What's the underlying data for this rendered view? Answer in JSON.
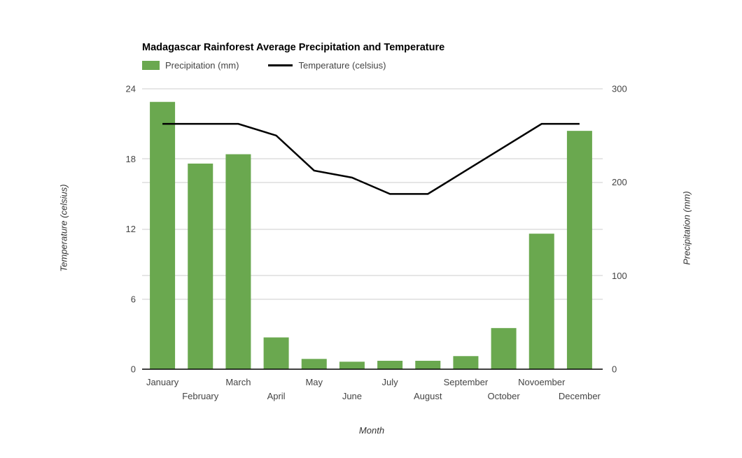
{
  "chart": {
    "title": "Madagascar Rainforest Average Precipitation and Temperature"
  },
  "chart_data": {
    "type": "combo",
    "title": "Madagascar Rainforest Average Precipitation and Temperature",
    "categories": [
      "January",
      "February",
      "March",
      "April",
      "May",
      "June",
      "July",
      "August",
      "September",
      "October",
      "Novoember",
      "December"
    ],
    "series": [
      {
        "name": "Precipitation (mm)",
        "type": "bar",
        "axis": "right",
        "color": "#6aa84f",
        "values": [
          286,
          220,
          230,
          34,
          11,
          8,
          9,
          9,
          14,
          44,
          145,
          255
        ]
      },
      {
        "name": "Temperature (celsius)",
        "type": "line",
        "axis": "left",
        "color": "#000000",
        "values": [
          21,
          21,
          21,
          20,
          17,
          16.4,
          15,
          15,
          17,
          19,
          21,
          21
        ]
      }
    ],
    "xlabel": "Month",
    "left_axis": {
      "title": "Temperature (celsius)",
      "min": 0,
      "max": 24,
      "ticks": [
        0,
        6,
        12,
        18,
        24
      ]
    },
    "right_axis": {
      "title": "Precipitation (mm)",
      "min": 0,
      "max": 300,
      "ticks": [
        0,
        100,
        200,
        300
      ]
    },
    "grid": true,
    "legend_position": "top"
  },
  "colors": {
    "bar": "#6aa84f",
    "line": "#000000",
    "gridline": "#cccccc",
    "axis_line": "#000000",
    "tick_label": "#444444",
    "month_label": "#444444",
    "background": "#ffffff"
  }
}
